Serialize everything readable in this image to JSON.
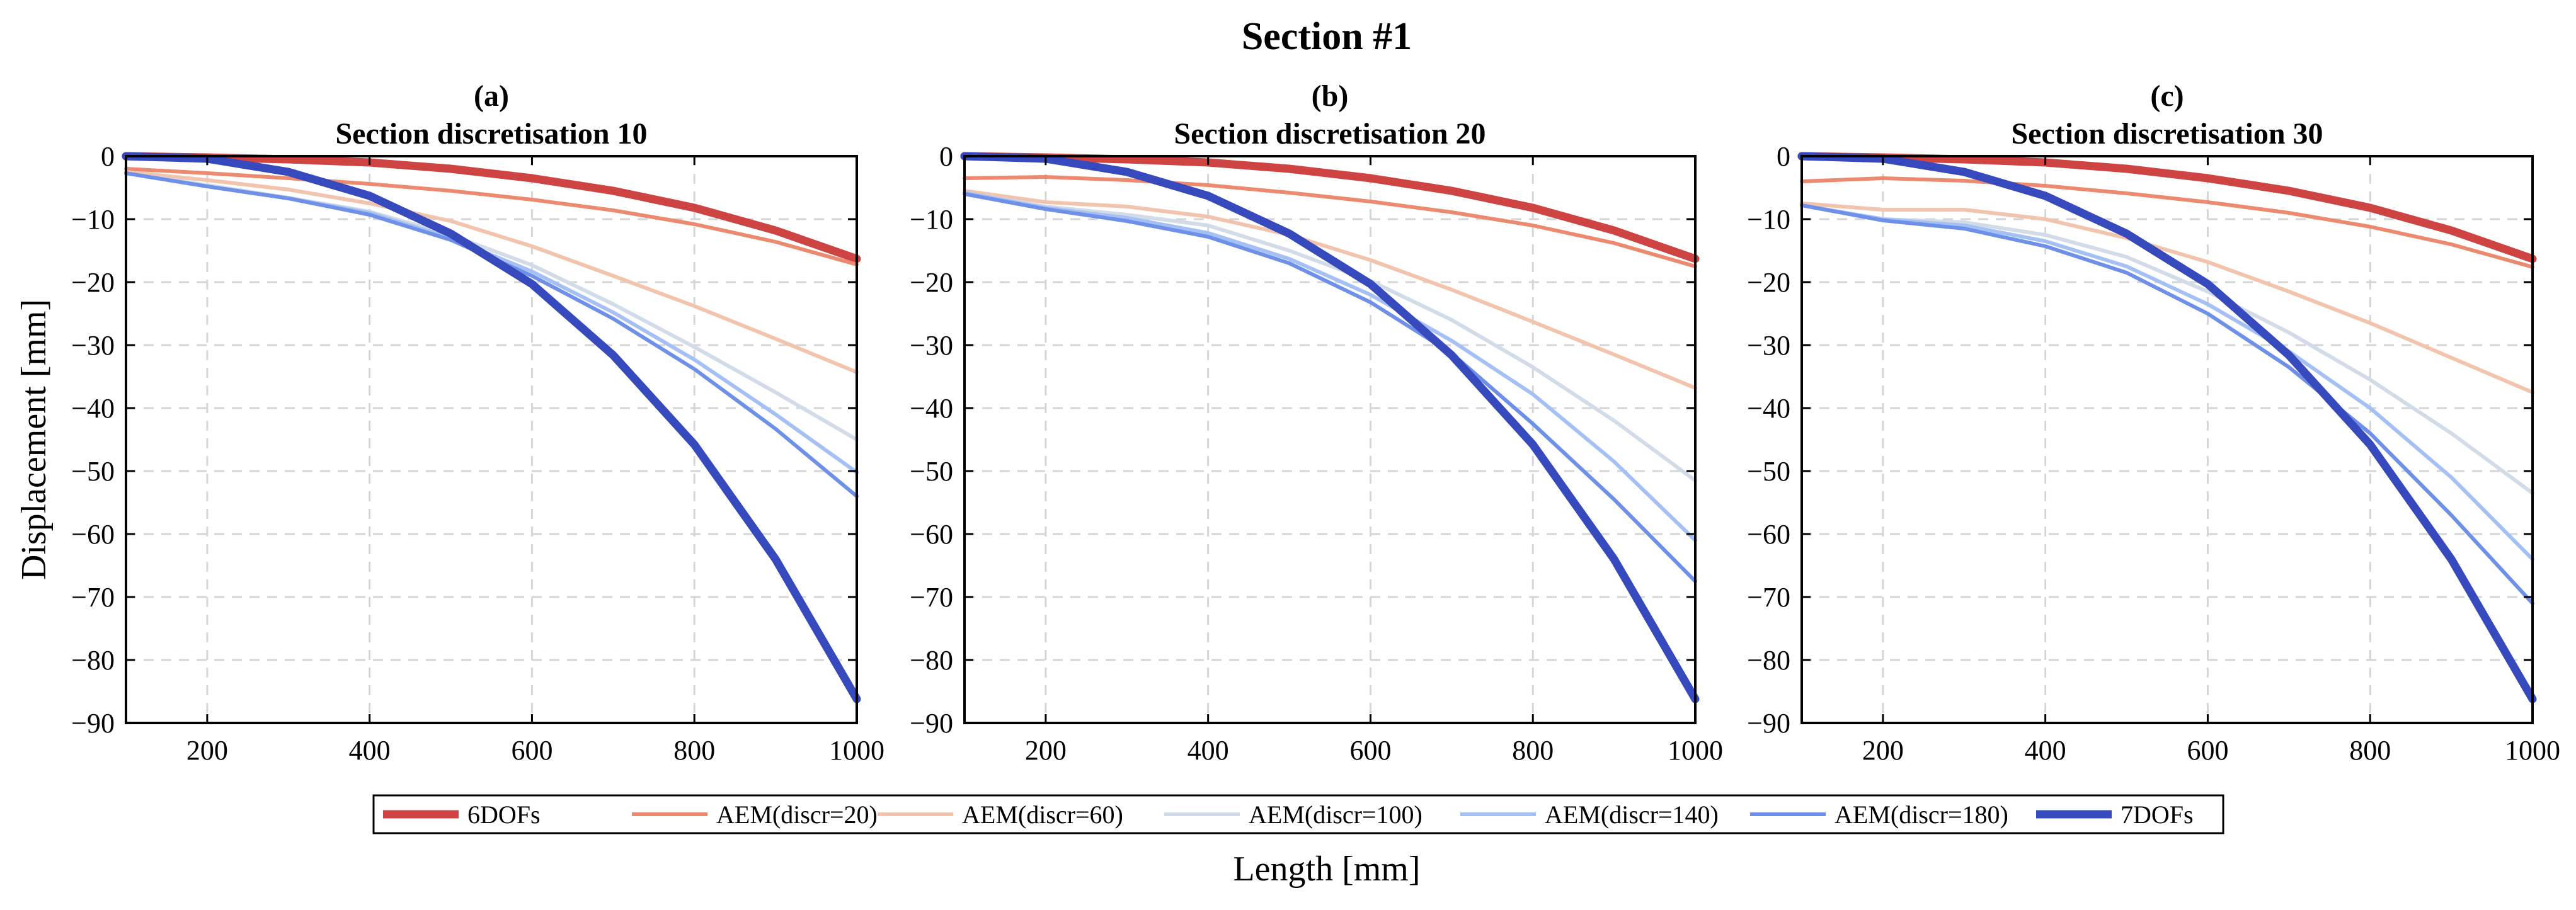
{
  "figure": {
    "suptitle": "Section #1",
    "ylabel": "Displacement [mm]",
    "xlabel": "Length [mm]"
  },
  "legend": {
    "placement": "bottom-center",
    "entries": [
      {
        "name": "6DOFs",
        "color": "#cd4443",
        "thick": true
      },
      {
        "name": "AEM(discr=20)",
        "color": "#ec8a6f",
        "thick": false
      },
      {
        "name": "AEM(discr=60)",
        "color": "#f3c4ad",
        "thick": false
      },
      {
        "name": "AEM(discr=100)",
        "color": "#d2dbe8",
        "thick": false
      },
      {
        "name": "AEM(discr=140)",
        "color": "#a5c0f4",
        "thick": false
      },
      {
        "name": "AEM(discr=180)",
        "color": "#6f90e8",
        "thick": false
      },
      {
        "name": "7DOFs",
        "color": "#3649bd",
        "thick": true
      }
    ]
  },
  "chart_data": [
    {
      "type": "line",
      "label": "(a)",
      "title": "Section discretisation 10",
      "xlim": [
        100,
        1000
      ],
      "ylim": [
        -90,
        0
      ],
      "xticks": [
        200,
        400,
        600,
        800,
        1000
      ],
      "yticks": [
        0,
        -10,
        -20,
        -30,
        -40,
        -50,
        -60,
        -70,
        -80,
        -90
      ],
      "grid": true,
      "x": [
        100,
        200,
        300,
        400,
        500,
        600,
        700,
        800,
        900,
        1000
      ],
      "series": [
        {
          "name": "6DOFs",
          "values": [
            0,
            -0.2,
            -0.5,
            -1.0,
            -2.0,
            -3.5,
            -5.5,
            -8.2,
            -11.8,
            -16.3
          ]
        },
        {
          "name": "AEM(discr=20)",
          "values": [
            -2.0,
            -2.7,
            -3.5,
            -4.4,
            -5.5,
            -6.9,
            -8.6,
            -10.8,
            -13.6,
            -17.2
          ]
        },
        {
          "name": "AEM(discr=60)",
          "values": [
            -2.5,
            -3.8,
            -5.3,
            -7.5,
            -10.3,
            -14.3,
            -19.0,
            -23.8,
            -29.0,
            -34.3
          ]
        },
        {
          "name": "AEM(discr=100)",
          "values": [
            -2.7,
            -4.6,
            -6.6,
            -8.8,
            -12.5,
            -17.3,
            -23.5,
            -30.3,
            -37.5,
            -45.0
          ]
        },
        {
          "name": "AEM(discr=140)",
          "values": [
            -2.7,
            -4.8,
            -6.7,
            -9.0,
            -13.0,
            -18.3,
            -24.8,
            -32.3,
            -41.0,
            -50.2
          ]
        },
        {
          "name": "AEM(discr=180)",
          "values": [
            -2.7,
            -4.8,
            -6.7,
            -9.3,
            -13.3,
            -19.0,
            -25.8,
            -33.8,
            -43.3,
            -54.0
          ]
        },
        {
          "name": "7DOFs",
          "values": [
            0,
            -0.4,
            -2.5,
            -6.3,
            -12.3,
            -20.3,
            -31.6,
            -45.8,
            -64.0,
            -86.2
          ]
        }
      ]
    },
    {
      "type": "line",
      "label": "(b)",
      "title": "Section discretisation 20",
      "xlim": [
        100,
        1000
      ],
      "ylim": [
        -90,
        0
      ],
      "xticks": [
        200,
        400,
        600,
        800,
        1000
      ],
      "yticks": [
        0,
        -10,
        -20,
        -30,
        -40,
        -50,
        -60,
        -70,
        -80,
        -90
      ],
      "grid": true,
      "x": [
        100,
        200,
        300,
        400,
        500,
        600,
        700,
        800,
        900,
        1000
      ],
      "series": [
        {
          "name": "6DOFs",
          "values": [
            0,
            -0.2,
            -0.5,
            -1.0,
            -2.0,
            -3.5,
            -5.5,
            -8.2,
            -11.8,
            -16.3
          ]
        },
        {
          "name": "AEM(discr=20)",
          "values": [
            -3.5,
            -3.3,
            -3.8,
            -4.6,
            -5.8,
            -7.2,
            -8.9,
            -11.0,
            -13.8,
            -17.5
          ]
        },
        {
          "name": "AEM(discr=60)",
          "values": [
            -5.5,
            -7.3,
            -8.0,
            -9.6,
            -12.5,
            -16.5,
            -21.2,
            -26.3,
            -31.5,
            -36.8
          ]
        },
        {
          "name": "AEM(discr=100)",
          "values": [
            -5.8,
            -8.0,
            -9.3,
            -11.0,
            -15.0,
            -19.8,
            -26.0,
            -33.5,
            -42.0,
            -51.5
          ]
        },
        {
          "name": "AEM(discr=140)",
          "values": [
            -5.8,
            -8.2,
            -9.8,
            -12.2,
            -16.3,
            -22.0,
            -29.3,
            -37.8,
            -48.5,
            -61.0
          ]
        },
        {
          "name": "AEM(discr=180)",
          "values": [
            -6.0,
            -8.4,
            -10.3,
            -12.8,
            -17.0,
            -23.2,
            -31.3,
            -42.5,
            -54.5,
            -67.5
          ]
        },
        {
          "name": "7DOFs",
          "values": [
            0,
            -0.4,
            -2.5,
            -6.3,
            -12.3,
            -20.3,
            -31.6,
            -45.8,
            -64.0,
            -86.2
          ]
        }
      ]
    },
    {
      "type": "line",
      "label": "(c)",
      "title": "Section discretisation 30",
      "xlim": [
        100,
        1000
      ],
      "ylim": [
        -90,
        0
      ],
      "xticks": [
        200,
        400,
        600,
        800,
        1000
      ],
      "yticks": [
        0,
        -10,
        -20,
        -30,
        -40,
        -50,
        -60,
        -70,
        -80,
        -90
      ],
      "grid": true,
      "x": [
        100,
        200,
        300,
        400,
        500,
        600,
        700,
        800,
        900,
        1000
      ],
      "series": [
        {
          "name": "6DOFs",
          "values": [
            0,
            -0.2,
            -0.5,
            -1.0,
            -2.0,
            -3.5,
            -5.5,
            -8.2,
            -11.8,
            -16.3
          ]
        },
        {
          "name": "AEM(discr=20)",
          "values": [
            -4.0,
            -3.5,
            -3.9,
            -4.7,
            -5.9,
            -7.3,
            -9.0,
            -11.2,
            -14.0,
            -17.6
          ]
        },
        {
          "name": "AEM(discr=60)",
          "values": [
            -7.5,
            -8.5,
            -8.5,
            -10.0,
            -13.0,
            -16.8,
            -21.5,
            -26.5,
            -32.0,
            -37.5
          ]
        },
        {
          "name": "AEM(discr=100)",
          "values": [
            -7.8,
            -10.0,
            -10.5,
            -12.5,
            -16.0,
            -21.5,
            -28.0,
            -35.5,
            -44.0,
            -53.5
          ]
        },
        {
          "name": "AEM(discr=140)",
          "values": [
            -7.8,
            -10.0,
            -11.0,
            -13.5,
            -17.5,
            -23.5,
            -31.0,
            -40.0,
            -51.0,
            -64.0
          ]
        },
        {
          "name": "AEM(discr=180)",
          "values": [
            -7.8,
            -10.2,
            -11.5,
            -14.3,
            -18.5,
            -25.0,
            -33.5,
            -44.0,
            -57.0,
            -71.0
          ]
        },
        {
          "name": "7DOFs",
          "values": [
            0,
            -0.4,
            -2.5,
            -6.3,
            -12.3,
            -20.3,
            -31.6,
            -45.8,
            -64.0,
            -86.2
          ]
        }
      ]
    }
  ]
}
